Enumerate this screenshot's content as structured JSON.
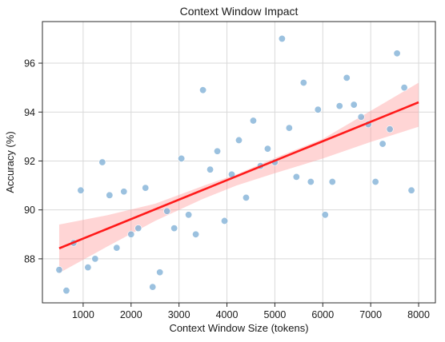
{
  "chart_data": {
    "type": "scatter",
    "title": "Context Window Impact",
    "xlabel": "Context Window Size (tokens)",
    "ylabel": "Accuracy (%)",
    "xlim": [
      150,
      8350
    ],
    "ylim": [
      86.2,
      97.7
    ],
    "xticks": [
      1000,
      2000,
      3000,
      4000,
      5000,
      6000,
      7000,
      8000
    ],
    "yticks": [
      88,
      90,
      92,
      94,
      96
    ],
    "grid": true,
    "point_color": "#7fafd6",
    "regression_color": "#ff1a1a",
    "ci_band_color": "#ff9a9a",
    "points": [
      {
        "x": 500,
        "y": 87.55
      },
      {
        "x": 650,
        "y": 86.7
      },
      {
        "x": 800,
        "y": 88.65
      },
      {
        "x": 950,
        "y": 90.8
      },
      {
        "x": 1100,
        "y": 87.65
      },
      {
        "x": 1250,
        "y": 88.0
      },
      {
        "x": 1400,
        "y": 91.95
      },
      {
        "x": 1550,
        "y": 90.6
      },
      {
        "x": 1700,
        "y": 88.45
      },
      {
        "x": 1850,
        "y": 90.75
      },
      {
        "x": 2000,
        "y": 89.0
      },
      {
        "x": 2150,
        "y": 89.25
      },
      {
        "x": 2300,
        "y": 90.9
      },
      {
        "x": 2450,
        "y": 86.85
      },
      {
        "x": 2600,
        "y": 87.45
      },
      {
        "x": 2750,
        "y": 89.95
      },
      {
        "x": 2900,
        "y": 89.25
      },
      {
        "x": 3050,
        "y": 92.1
      },
      {
        "x": 3200,
        "y": 89.8
      },
      {
        "x": 3350,
        "y": 89.0
      },
      {
        "x": 3500,
        "y": 94.9
      },
      {
        "x": 3650,
        "y": 91.65
      },
      {
        "x": 3800,
        "y": 92.4
      },
      {
        "x": 3950,
        "y": 89.55
      },
      {
        "x": 4100,
        "y": 91.45
      },
      {
        "x": 4250,
        "y": 92.85
      },
      {
        "x": 4400,
        "y": 90.5
      },
      {
        "x": 4550,
        "y": 93.65
      },
      {
        "x": 4700,
        "y": 91.8
      },
      {
        "x": 4850,
        "y": 92.5
      },
      {
        "x": 5000,
        "y": 91.95
      },
      {
        "x": 5150,
        "y": 97.0
      },
      {
        "x": 5300,
        "y": 93.35
      },
      {
        "x": 5450,
        "y": 91.35
      },
      {
        "x": 5600,
        "y": 95.2
      },
      {
        "x": 5750,
        "y": 91.15
      },
      {
        "x": 5900,
        "y": 94.1
      },
      {
        "x": 6050,
        "y": 89.8
      },
      {
        "x": 6200,
        "y": 91.15
      },
      {
        "x": 6350,
        "y": 94.25
      },
      {
        "x": 6500,
        "y": 95.4
      },
      {
        "x": 6650,
        "y": 94.3
      },
      {
        "x": 6800,
        "y": 93.8
      },
      {
        "x": 6950,
        "y": 93.5
      },
      {
        "x": 7100,
        "y": 91.15
      },
      {
        "x": 7250,
        "y": 92.7
      },
      {
        "x": 7400,
        "y": 93.3
      },
      {
        "x": 7550,
        "y": 96.4
      },
      {
        "x": 7700,
        "y": 95.0
      },
      {
        "x": 7850,
        "y": 90.8
      }
    ],
    "regression": {
      "x": [
        500,
        8000
      ],
      "y": [
        88.43,
        94.4
      ]
    },
    "confidence_band": {
      "x": [
        500,
        1500,
        2500,
        3500,
        4200,
        5000,
        6000,
        7000,
        8000
      ],
      "lower": [
        87.42,
        88.5,
        89.55,
        90.45,
        91.0,
        91.5,
        92.1,
        92.78,
        93.4
      ],
      "upper": [
        89.4,
        89.78,
        90.25,
        90.98,
        91.45,
        92.12,
        92.9,
        94.05,
        95.2
      ]
    }
  }
}
